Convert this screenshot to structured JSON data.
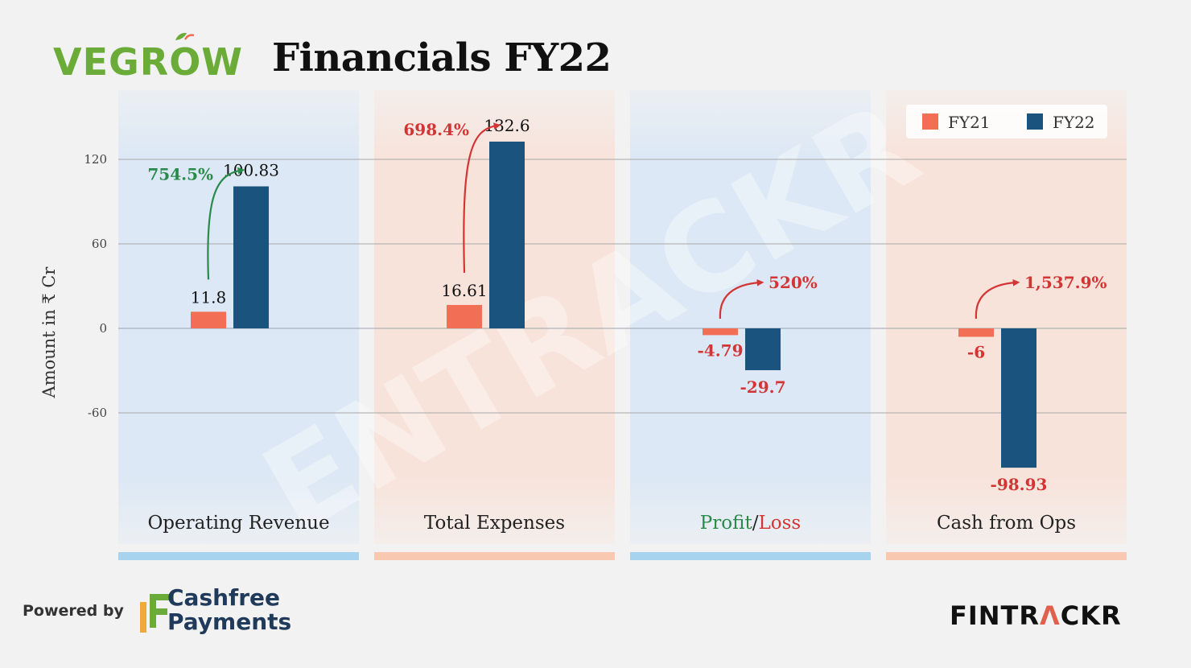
{
  "header": {
    "brand": "VEGROW",
    "title": "Financials FY22"
  },
  "footer": {
    "powered_by": "Powered by",
    "partner_line1": "Cashfree",
    "partner_line2": "Payments",
    "publisher_a": "FINTR",
    "publisher_b": "Λ",
    "publisher_c": "CKR"
  },
  "watermark": "ENTRACKR",
  "colors": {
    "fy21": "#f26f55",
    "fy22": "#1b537f",
    "positive": "#2a8a4a",
    "negative": "#d33535",
    "panel_blue": "#dce8f5",
    "panel_peach": "#f8e3da",
    "strip_blue": "#a7d3ef",
    "strip_peach": "#f8c9b0"
  },
  "chart_data": {
    "type": "bar",
    "ylabel": "Amount in ₹ Cr",
    "yticks": [
      120,
      60,
      0,
      -60
    ],
    "ylim": [
      -120,
      150
    ],
    "legend": {
      "position": "top-right",
      "items": [
        "FY21",
        "FY22"
      ]
    },
    "series": [
      {
        "name": "FY21",
        "values": [
          11.8,
          16.61,
          -4.79,
          -6
        ]
      },
      {
        "name": "FY22",
        "values": [
          100.83,
          132.6,
          -29.7,
          -98.93
        ]
      }
    ],
    "categories": [
      "Operating Revenue",
      "Total Expenses",
      "Profit/Loss",
      "Cash from Ops"
    ],
    "category_parts": [
      [
        {
          "text": "Operating Revenue",
          "tone": "neutral"
        }
      ],
      [
        {
          "text": "Total Expenses",
          "tone": "neutral"
        }
      ],
      [
        {
          "text": "Profit",
          "tone": "positive"
        },
        {
          "text": "/",
          "tone": "neutral"
        },
        {
          "text": "Loss",
          "tone": "negative"
        }
      ],
      [
        {
          "text": "Cash from Ops",
          "tone": "neutral"
        }
      ]
    ],
    "data_labels": {
      "FY21": [
        "11.8",
        "16.61",
        "-4.79",
        "-6"
      ],
      "FY22": [
        "100.83",
        "132.6",
        "-29.7",
        "-98.93"
      ]
    },
    "growth": [
      {
        "label": "754.5%",
        "tone": "positive"
      },
      {
        "label": "698.4%",
        "tone": "negative"
      },
      {
        "label": "520%",
        "tone": "negative"
      },
      {
        "label": "1,537.9%",
        "tone": "negative"
      }
    ]
  }
}
